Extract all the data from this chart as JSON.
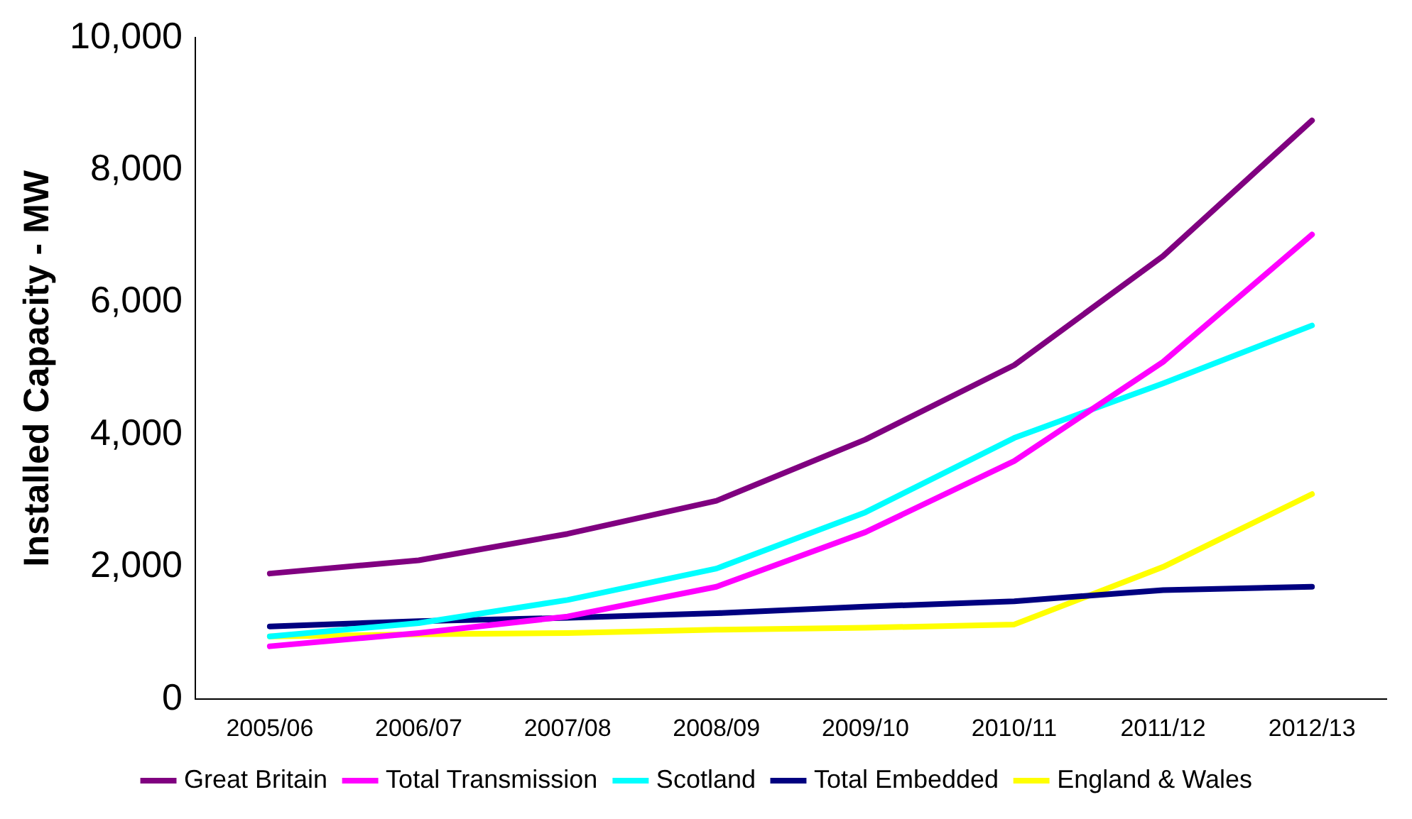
{
  "chart_data": {
    "type": "line",
    "ylabel": "Installed Capacity - MW",
    "categories": [
      "2005/06",
      "2006/07",
      "2007/08",
      "2008/09",
      "2009/10",
      "2010/11",
      "2011/12",
      "2012/13"
    ],
    "ylim": [
      0,
      10000
    ],
    "yticks": [
      {
        "value": 0,
        "label": "0"
      },
      {
        "value": 2000,
        "label": "2,000"
      },
      {
        "value": 4000,
        "label": "4,000"
      },
      {
        "value": 6000,
        "label": "6,000"
      },
      {
        "value": 8000,
        "label": "8,000"
      },
      {
        "value": 10000,
        "label": "10,000"
      }
    ],
    "grid": false,
    "legend": "bottom",
    "marker": "none",
    "line_style": "solid",
    "series": [
      {
        "name": "Great Britain",
        "color": "#800080",
        "values": [
          1900,
          2100,
          2500,
          3000,
          3925,
          5050,
          6700,
          8750
        ]
      },
      {
        "name": "Total Transmission",
        "color": "#ff00ff",
        "values": [
          800,
          1000,
          1250,
          1700,
          2525,
          3600,
          5100,
          7025
        ]
      },
      {
        "name": "Scotland",
        "color": "#00ffff",
        "values": [
          950,
          1150,
          1500,
          1975,
          2825,
          3950,
          4775,
          5650
        ]
      },
      {
        "name": "Total Embedded",
        "color": "#000080",
        "values": [
          1100,
          1180,
          1230,
          1300,
          1400,
          1480,
          1650,
          1700
        ]
      },
      {
        "name": "England & Wales",
        "color": "#ffff00",
        "values": [
          950,
          980,
          1000,
          1050,
          1080,
          1130,
          2000,
          3100
        ]
      }
    ]
  }
}
